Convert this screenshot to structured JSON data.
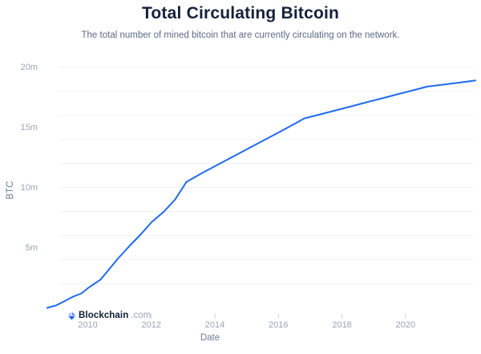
{
  "header": {
    "title": "Total Circulating Bitcoin",
    "subtitle": "The total number of mined bitcoin that are currently circulating on the network."
  },
  "footer": {
    "brand": "Blockchain",
    "brand_suffix": ".com",
    "logo_icon": "blockchain-gem-icon",
    "logo_colors": {
      "light": "#9db9f9",
      "mid": "#4f8af8",
      "dark": "#1b63f5"
    }
  },
  "chart_data": {
    "type": "line",
    "title": "Total Circulating Bitcoin",
    "subtitle": "The total number of mined bitcoin that are currently circulating on the network.",
    "xlabel": "Date",
    "ylabel": "BTC",
    "legend": "none",
    "grid": "horizontal only, light gray, every 2 million",
    "x_range_years": [
      2008.7,
      2022.3
    ],
    "y_range_btc_millions": [
      0,
      20
    ],
    "y_grid_step_millions": 2,
    "colors": {
      "line": "#1e6bef",
      "grid": "#f1f2f6",
      "tick": "#ccd3de",
      "axis_label": "#9ba4b6",
      "axis_title": "#6e7a93"
    },
    "x_ticks": [
      {
        "label": "2010",
        "year": 2010,
        "tick_visible": false
      },
      {
        "label": "2012",
        "year": 2012,
        "tick_visible": true
      },
      {
        "label": "2014",
        "year": 2014,
        "tick_visible": true
      },
      {
        "label": "2016",
        "year": 2016,
        "tick_visible": true
      },
      {
        "label": "2018",
        "year": 2018,
        "tick_visible": true
      },
      {
        "label": "2020",
        "year": 2020,
        "tick_visible": true
      }
    ],
    "y_ticks": [
      {
        "label": "5m",
        "value": 5
      },
      {
        "label": "10m",
        "value": 10
      },
      {
        "label": "15m",
        "value": 15
      },
      {
        "label": "20m",
        "value": 20
      }
    ],
    "series": [
      {
        "name": "Total Circulating Bitcoin (millions)",
        "points": [
          [
            2008.72,
            0
          ],
          [
            2009.0,
            0.2
          ],
          [
            2009.3,
            0.6
          ],
          [
            2009.55,
            0.95
          ],
          [
            2009.8,
            1.2
          ],
          [
            2010.0,
            1.63
          ],
          [
            2010.4,
            2.35
          ],
          [
            2010.7,
            3.3
          ],
          [
            2010.95,
            4.1
          ],
          [
            2011.3,
            5.1
          ],
          [
            2011.7,
            6.2
          ],
          [
            2012.0,
            7.1
          ],
          [
            2012.4,
            8.0
          ],
          [
            2012.75,
            9.0
          ],
          [
            2013.1,
            10.45
          ],
          [
            2013.6,
            11.2
          ],
          [
            2014.1,
            11.9
          ],
          [
            2014.6,
            12.6
          ],
          [
            2015.1,
            13.3
          ],
          [
            2015.6,
            14.0
          ],
          [
            2016.1,
            14.7
          ],
          [
            2016.55,
            15.34
          ],
          [
            2016.8,
            15.72
          ],
          [
            2017.3,
            16.06
          ],
          [
            2017.8,
            16.4
          ],
          [
            2018.3,
            16.74
          ],
          [
            2018.8,
            17.09
          ],
          [
            2019.3,
            17.43
          ],
          [
            2019.8,
            17.77
          ],
          [
            2020.2,
            18.04
          ],
          [
            2020.68,
            18.37
          ],
          [
            2021.2,
            18.54
          ],
          [
            2021.7,
            18.71
          ],
          [
            2022.2,
            18.88
          ]
        ]
      }
    ],
    "annotations": "slope kinks at block-reward halvings: ~10.5m (2012/13), ~15.7m (2016), ~18.4m (2020); curve ends near 18.9m"
  }
}
